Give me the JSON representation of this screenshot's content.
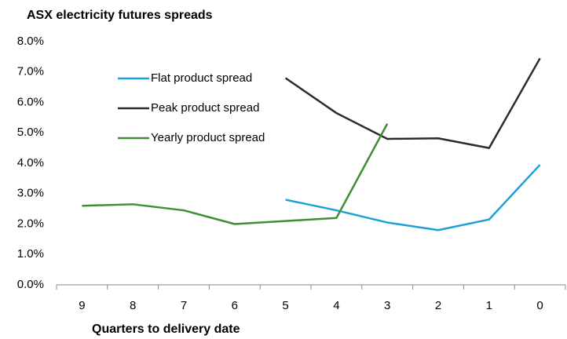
{
  "chart_data": {
    "type": "line",
    "title": "ASX electricity futures spreads",
    "x_label": "Quarters to delivery date",
    "categories": [
      "9",
      "8",
      "7",
      "6",
      "5",
      "4",
      "3",
      "2",
      "1",
      "0"
    ],
    "series": [
      {
        "name": "Flat product spread",
        "color": "#1ba1d8",
        "values": [
          null,
          null,
          null,
          null,
          2.8,
          2.45,
          2.05,
          1.8,
          2.15,
          3.95
        ]
      },
      {
        "name": "Peak product spread",
        "color": "#2b2b2b",
        "values": [
          null,
          null,
          null,
          null,
          6.8,
          5.65,
          4.8,
          4.82,
          4.5,
          7.45
        ]
      },
      {
        "name": "Yearly product spread",
        "color": "#3e8e34",
        "values": [
          2.6,
          2.65,
          2.45,
          2.0,
          2.1,
          2.2,
          5.3,
          null,
          null,
          null
        ]
      }
    ],
    "ylim": [
      0,
      8
    ],
    "yticks": [
      {
        "value": 0,
        "label": "0.0%"
      },
      {
        "value": 1,
        "label": "1.0%"
      },
      {
        "value": 2,
        "label": "2.0%"
      },
      {
        "value": 3,
        "label": "3.0%"
      },
      {
        "value": 4,
        "label": "4.0%"
      },
      {
        "value": 5,
        "label": "5.0%"
      },
      {
        "value": 6,
        "label": "6.0%"
      },
      {
        "value": 7,
        "label": "7.0%"
      },
      {
        "value": 8,
        "label": "8.0%"
      }
    ],
    "legend": "upper left",
    "grid": false
  }
}
